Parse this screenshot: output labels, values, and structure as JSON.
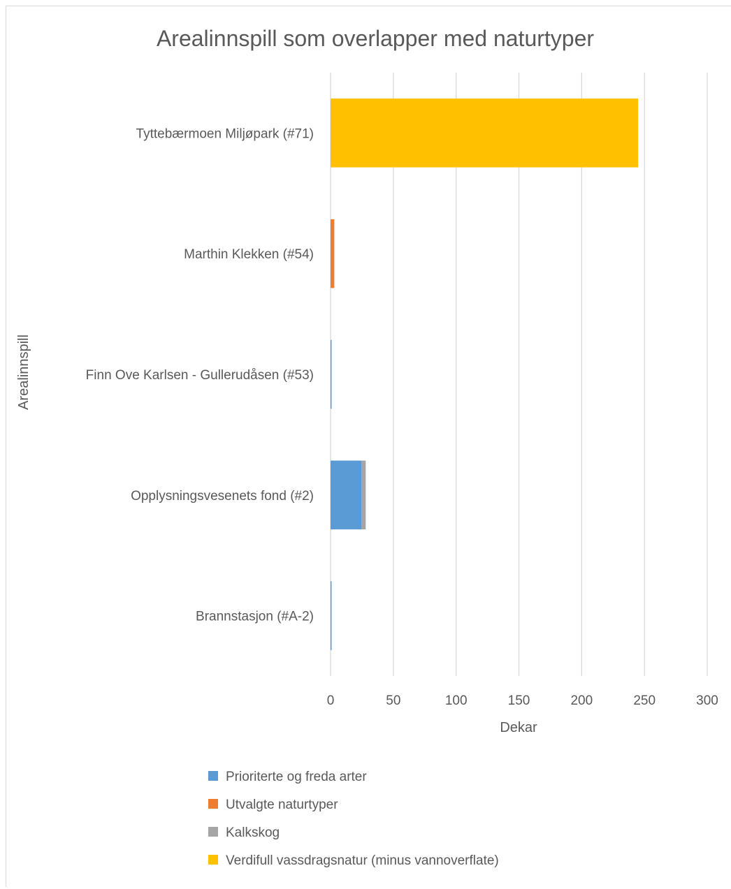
{
  "chart_data": {
    "type": "bar",
    "orientation": "horizontal",
    "stacked": true,
    "title": "Arealinnspill som overlapper med naturtyper",
    "xlabel": "Dekar",
    "ylabel": "Arealinnspill",
    "xlim": [
      0,
      300
    ],
    "xticks": [
      "0",
      "50",
      "100",
      "150",
      "200",
      "250",
      "300"
    ],
    "grid": true,
    "legend_position": "bottom",
    "categories": [
      "Tyttebærmoen Miljøpark (#71)",
      "Marthin Klekken (#54)",
      "Finn Ove Karlsen - Gullerudåsen (#53)",
      "Opplysningsvesenets fond (#2)",
      "Brannstasjon (#A-2)"
    ],
    "series": [
      {
        "name": "Prioriterte og freda arter",
        "color": "#5b9bd5",
        "values": [
          0,
          0,
          0.5,
          24.5,
          0.5
        ]
      },
      {
        "name": "Utvalgte naturtyper",
        "color": "#ed7d31",
        "values": [
          0,
          3,
          0,
          0,
          0
        ]
      },
      {
        "name": "Kalkskog",
        "color": "#a5a5a5",
        "values": [
          0,
          0,
          0,
          3.5,
          0
        ]
      },
      {
        "name": "Verdifull vassdragsnatur (minus vannoverflate)",
        "color": "#ffc000",
        "values": [
          245,
          0,
          0,
          0,
          0
        ]
      }
    ]
  }
}
